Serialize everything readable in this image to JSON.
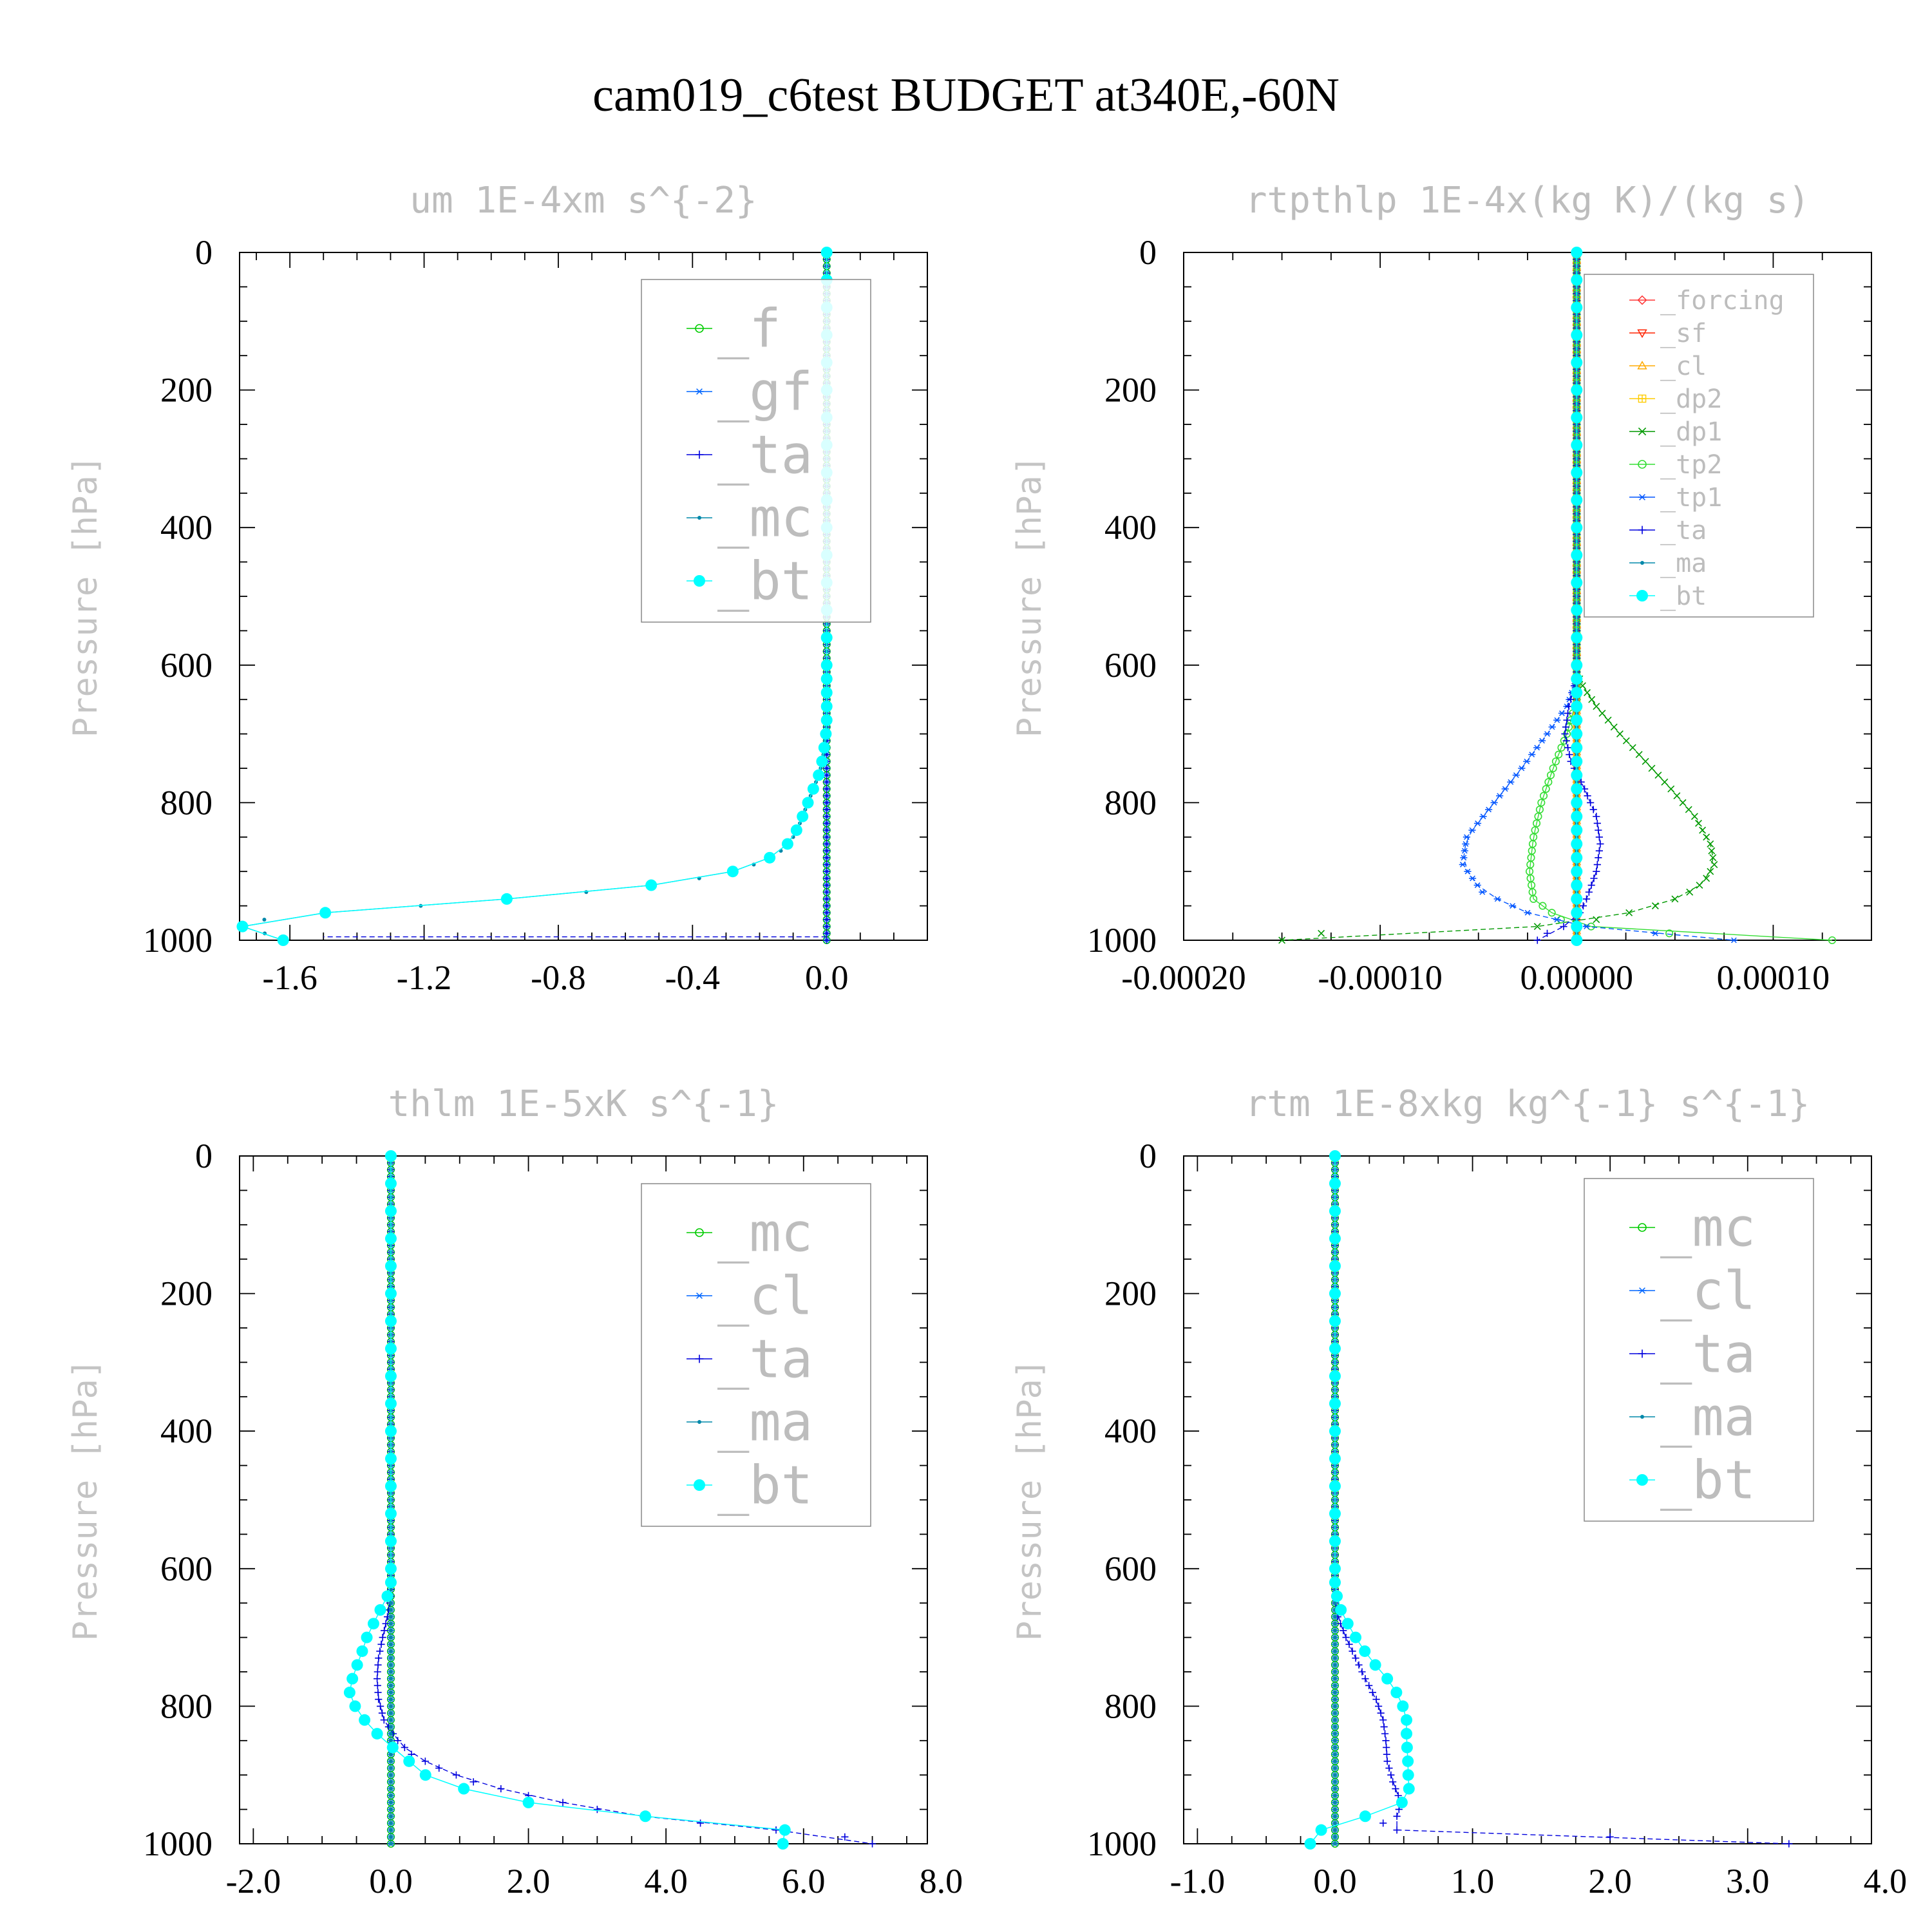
{
  "title": "cam019_c6test  BUDGET at340E,-60N",
  "chart_data": [
    {
      "type": "line",
      "title": "um  1E-4xm s^{-2}",
      "ylabel": "Pressure [hPa]",
      "xlabel": "",
      "xlim": [
        -1.75,
        0.3
      ],
      "ylim": [
        1000,
        0
      ],
      "xticks": [
        "-1.6",
        "-1.2",
        "-0.8",
        "-0.4",
        "0.0"
      ],
      "xtick_values": [
        -1.6,
        -1.2,
        -0.8,
        -0.4,
        0.0
      ],
      "yticks": [
        "0",
        "200",
        "400",
        "600",
        "800",
        "1000"
      ],
      "legend_position": "top-right",
      "series": [
        {
          "name": "_f",
          "color": "#00cc00",
          "marker": "circle-open",
          "x": "zero"
        },
        {
          "name": "_gf",
          "color": "#0066ff",
          "marker": "asterisk",
          "x": "zero"
        },
        {
          "name": "_ta",
          "color": "#0000dd",
          "marker": "plus",
          "x": "zero",
          "spike": {
            "p": 995,
            "x": -1.5
          }
        },
        {
          "name": "_mc",
          "color": "#0088aa",
          "marker": "dot",
          "x": "profile"
        },
        {
          "name": "_bt",
          "color": "#00ffff",
          "marker": "filled-circle",
          "x": "profile"
        }
      ],
      "profile": [
        [
          0,
          0
        ],
        [
          610,
          0
        ],
        [
          650,
          0
        ],
        [
          690,
          0
        ],
        [
          730,
          -0.01
        ],
        [
          755,
          -0.02
        ],
        [
          780,
          -0.04
        ],
        [
          805,
          -0.06
        ],
        [
          830,
          -0.08
        ],
        [
          850,
          -0.1
        ],
        [
          868,
          -0.13
        ],
        [
          883,
          -0.18
        ],
        [
          898,
          -0.26
        ],
        [
          912,
          -0.4
        ],
        [
          925,
          -0.6
        ],
        [
          937,
          -0.88
        ],
        [
          948,
          -1.15
        ],
        [
          958,
          -1.45
        ],
        [
          967,
          -1.65
        ],
        [
          975,
          -1.72
        ],
        [
          982,
          -1.75
        ],
        [
          987,
          -1.7
        ],
        [
          993,
          -1.65
        ],
        [
          1000,
          -1.62
        ]
      ]
    },
    {
      "type": "line",
      "title": "rtpthlp  1E-4x(kg K)/(kg s)",
      "ylabel": "Pressure [hPa]",
      "xlabel": "",
      "xlim": [
        -0.0002,
        0.00015
      ],
      "ylim": [
        1000,
        0
      ],
      "xticks": [
        "-0.00020",
        "-0.00010",
        "0.00000",
        "0.00010"
      ],
      "xtick_values": [
        -0.0002,
        -0.0001,
        0.0,
        0.0001
      ],
      "yticks": [
        "0",
        "200",
        "400",
        "600",
        "800",
        "1000"
      ],
      "legend_position": "top-right",
      "series": [
        {
          "name": "_forcing",
          "color": "#ff3333",
          "marker": "diamond"
        },
        {
          "name": "_sf",
          "color": "#ff2200",
          "marker": "triangle-down"
        },
        {
          "name": "_cl",
          "color": "#ffaa00",
          "marker": "triangle-up"
        },
        {
          "name": "_dp2",
          "color": "#ffcc00",
          "marker": "square-plus"
        },
        {
          "name": "_dp1",
          "color": "#009900",
          "marker": "x",
          "points": [
            [
              0,
              0
            ],
            [
              610,
              0
            ],
            [
              630,
              3e-06
            ],
            [
              660,
              1e-05
            ],
            [
              700,
              2.2e-05
            ],
            [
              740,
              3.5e-05
            ],
            [
              780,
              4.8e-05
            ],
            [
              820,
              6e-05
            ],
            [
              860,
              6.8e-05
            ],
            [
              890,
              7e-05
            ],
            [
              915,
              6.5e-05
            ],
            [
              935,
              5.5e-05
            ],
            [
              955,
              3.5e-05
            ],
            [
              970,
              1e-05
            ],
            [
              980,
              -2e-05
            ],
            [
              990,
              -0.00013
            ],
            [
              995,
              -0.00015
            ]
          ]
        },
        {
          "name": "_tp2",
          "color": "#33dd33",
          "marker": "circle-open",
          "points": [
            [
              0,
              0
            ],
            [
              650,
              0
            ],
            [
              700,
              -5e-06
            ],
            [
              750,
              -1.2e-05
            ],
            [
              800,
              -1.8e-05
            ],
            [
              850,
              -2.2e-05
            ],
            [
              900,
              -2.4e-05
            ],
            [
              940,
              -2.2e-05
            ],
            [
              970,
              -8e-06
            ],
            [
              985,
              1.5e-05
            ],
            [
              992,
              6e-05
            ],
            [
              997,
              0.00013
            ]
          ]
        },
        {
          "name": "_tp1",
          "color": "#0055ff",
          "marker": "asterisk",
          "points": [
            [
              0,
              0
            ],
            [
              620,
              0
            ],
            [
              660,
              -5e-06
            ],
            [
              700,
              -1.5e-05
            ],
            [
              750,
              -2.8e-05
            ],
            [
              800,
              -4.2e-05
            ],
            [
              850,
              -5.6e-05
            ],
            [
              890,
              -5.8e-05
            ],
            [
              930,
              -4.8e-05
            ],
            [
              960,
              -2.5e-05
            ],
            [
              980,
              5e-06
            ],
            [
              990,
              4e-05
            ],
            [
              995,
              8e-05
            ]
          ]
        },
        {
          "name": "_ta",
          "color": "#0000dd",
          "marker": "plus",
          "points": [
            [
              0,
              0
            ],
            [
              620,
              0
            ],
            [
              660,
              -4e-06
            ],
            [
              700,
              -6e-06
            ],
            [
              740,
              -3e-06
            ],
            [
              780,
              4e-06
            ],
            [
              820,
              1e-05
            ],
            [
              860,
              1.2e-05
            ],
            [
              900,
              1e-05
            ],
            [
              940,
              5e-06
            ],
            [
              970,
              0
            ],
            [
              985,
              -1e-05
            ],
            [
              995,
              -2e-05
            ]
          ]
        },
        {
          "name": "_ma",
          "color": "#0088aa",
          "marker": "dot"
        },
        {
          "name": "_bt",
          "color": "#00ffff",
          "marker": "filled-circle"
        }
      ]
    },
    {
      "type": "line",
      "title": "thlm  1E-5xK s^{-1}",
      "ylabel": "Pressure [hPa]",
      "xlabel": "",
      "xlim": [
        -2.2,
        7.8
      ],
      "ylim": [
        1000,
        0
      ],
      "xticks": [
        "-2.0",
        "0.0",
        "2.0",
        "4.0",
        "6.0",
        "8.0"
      ],
      "xtick_values": [
        -2.0,
        0.0,
        2.0,
        4.0,
        6.0,
        8.0
      ],
      "yticks": [
        "0",
        "200",
        "400",
        "600",
        "800",
        "1000"
      ],
      "legend_position": "top-right",
      "series": [
        {
          "name": "_mc",
          "color": "#00cc00",
          "marker": "circle-open",
          "x": "zero"
        },
        {
          "name": "_cl",
          "color": "#0066ff",
          "marker": "asterisk",
          "x": "zero"
        },
        {
          "name": "_ta",
          "color": "#0000dd",
          "marker": "plus",
          "points": [
            [
              0,
              0
            ],
            [
              640,
              0
            ],
            [
              670,
              -0.05
            ],
            [
              700,
              -0.12
            ],
            [
              730,
              -0.18
            ],
            [
              760,
              -0.2
            ],
            [
              790,
              -0.18
            ],
            [
              820,
              -0.1
            ],
            [
              850,
              0.1
            ],
            [
              870,
              0.3
            ],
            [
              890,
              0.7
            ],
            [
              910,
              1.2
            ],
            [
              930,
              2
            ],
            [
              950,
              3
            ],
            [
              965,
              4
            ],
            [
              975,
              5
            ],
            [
              985,
              6.2
            ],
            [
              995,
              7
            ]
          ]
        },
        {
          "name": "_ma",
          "color": "#0088aa",
          "marker": "dot",
          "x": "zero"
        },
        {
          "name": "_bt",
          "color": "#00ffff",
          "marker": "filled-circle",
          "points": [
            [
              0,
              0
            ],
            [
              630,
              0
            ],
            [
              665,
              -0.18
            ],
            [
              700,
              -0.35
            ],
            [
              730,
              -0.45
            ],
            [
              755,
              -0.55
            ],
            [
              780,
              -0.6
            ],
            [
              805,
              -0.5
            ],
            [
              828,
              -0.32
            ],
            [
              848,
              -0.12
            ],
            [
              866,
              0.1
            ],
            [
              883,
              0.3
            ],
            [
              898,
              0.45
            ],
            [
              913,
              0.85
            ],
            [
              928,
              1.3
            ],
            [
              940,
              2
            ],
            [
              952,
              2.9
            ],
            [
              962,
              3.9
            ],
            [
              971,
              5
            ],
            [
              979,
              5.7
            ],
            [
              986,
              5.9
            ],
            [
              993,
              5.7
            ],
            [
              1000,
              5.7
            ]
          ]
        }
      ]
    },
    {
      "type": "line",
      "title": "rtm  1E-8xkg kg^{-1} s^{-1}",
      "ylabel": "Pressure [hPa]",
      "xlabel": "",
      "xlim": [
        -1.1,
        3.9
      ],
      "ylim": [
        1000,
        0
      ],
      "xticks": [
        "-1.0",
        "0.0",
        "1.0",
        "2.0",
        "3.0",
        "4.0"
      ],
      "xtick_values": [
        -1.0,
        0.0,
        1.0,
        2.0,
        3.0,
        4.0
      ],
      "yticks": [
        "0",
        "200",
        "400",
        "600",
        "800",
        "1000"
      ],
      "legend_position": "top-right",
      "series": [
        {
          "name": "_mc",
          "color": "#00cc00",
          "marker": "circle-open",
          "x": "zero"
        },
        {
          "name": "_cl",
          "color": "#0066ff",
          "marker": "asterisk",
          "x": "zero"
        },
        {
          "name": "_ta",
          "color": "#0000dd",
          "marker": "plus",
          "points": [
            [
              0,
              0
            ],
            [
              640,
              0
            ],
            [
              670,
              0.02
            ],
            [
              700,
              0.08
            ],
            [
              730,
              0.15
            ],
            [
              760,
              0.22
            ],
            [
              790,
              0.3
            ],
            [
              820,
              0.35
            ],
            [
              850,
              0.37
            ],
            [
              880,
              0.38
            ],
            [
              910,
              0.42
            ],
            [
              940,
              0.48
            ],
            [
              960,
              0.45
            ],
            [
              975,
              0.3
            ],
            [
              985,
              0.6
            ],
            [
              990,
              2
            ],
            [
              994,
              3.3
            ]
          ]
        },
        {
          "name": "_ma",
          "color": "#0088aa",
          "marker": "dot",
          "x": "zero"
        },
        {
          "name": "_bt",
          "color": "#00ffff",
          "marker": "filled-circle",
          "points": [
            [
              0,
              0
            ],
            [
              630,
              0
            ],
            [
              665,
              0.05
            ],
            [
              700,
              0.15
            ],
            [
              730,
              0.25
            ],
            [
              760,
              0.38
            ],
            [
              790,
              0.48
            ],
            [
              820,
              0.52
            ],
            [
              850,
              0.52
            ],
            [
              875,
              0.53
            ],
            [
              895,
              0.53
            ],
            [
              915,
              0.54
            ],
            [
              935,
              0.53
            ],
            [
              950,
              0.4
            ],
            [
              960,
              0.22
            ],
            [
              970,
              0
            ],
            [
              980,
              -0.1
            ],
            [
              990,
              -0.16
            ],
            [
              1000,
              -0.18
            ]
          ]
        }
      ]
    }
  ]
}
